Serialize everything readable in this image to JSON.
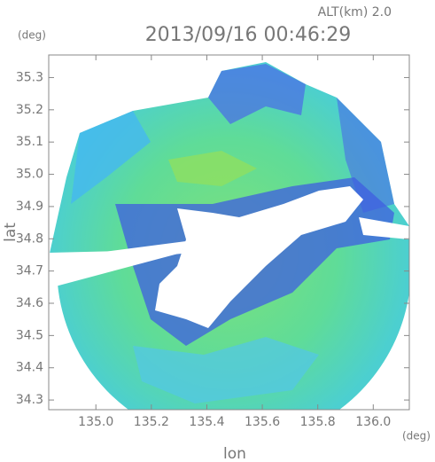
{
  "chart_data": {
    "type": "map",
    "title": "2013/09/16 00:46:29",
    "subtitle": "ALT(km) 2.0",
    "xlabel": "lon",
    "ylabel": "lat",
    "xunit": "(deg)",
    "yunit": "(deg)",
    "xlim": [
      134.83,
      136.13
    ],
    "ylim": [
      34.27,
      35.37
    ],
    "xticks": [
      {
        "value": 135.0,
        "label": "135.0"
      },
      135.2,
      135.4,
      135.6,
      135.8,
      {
        "value": 136.0,
        "label": "136.0"
      }
    ],
    "yticks": [
      {
        "value": 34.3,
        "label": "34.3"
      },
      34.4,
      34.5,
      34.6,
      34.7,
      34.8,
      34.9,
      {
        "value": 35.0,
        "label": "35.0"
      },
      35.1,
      35.2,
      35.3
    ]
  }
}
